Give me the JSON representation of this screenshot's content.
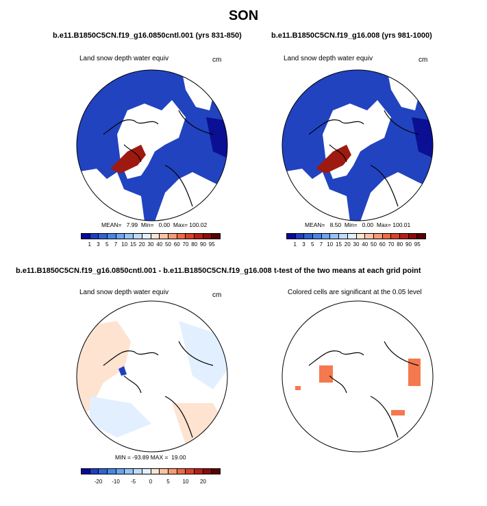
{
  "title": "SON",
  "panels": [
    {
      "title": "b.e11.B1850C5CN.f19_g16.0850cntl.001 (yrs 831-850)",
      "variable": "Land snow depth water equiv",
      "units": "cm",
      "stats": "MEAN=   7.99  Min=   0.00  Max= 100.02"
    },
    {
      "title": "b.e11.B1850C5CN.f19_g16.008 (yrs 981-1000)",
      "variable": "Land snow depth water equiv",
      "units": "cm",
      "stats": "MEAN=   8.50  Min=   0.00  Max= 100.01"
    },
    {
      "title": "b.e11.B1850C5CN.f19_g16.0850cntl.001 - b.e11.B1850C5CN.f19_g16.008",
      "variable": "Land snow depth water equiv",
      "units": "cm",
      "stats": "MIN = -93.89 MAX =  19.00"
    },
    {
      "title": "t-test of the two means at each grid point",
      "variable": "Colored cells are significant at the 0.05 level",
      "units": "",
      "stats": ""
    }
  ],
  "chart_data": [
    {
      "type": "heatmap",
      "projection": "north polar stereographic",
      "colorbar": {
        "labels": [
          "1",
          "3",
          "5",
          "7",
          "10",
          "15",
          "20",
          "30",
          "40",
          "50",
          "60",
          "70",
          "80",
          "90",
          "95"
        ],
        "colors": [
          "#08089c",
          "#1f3fc2",
          "#2f62d7",
          "#4a85e6",
          "#6aa5ef",
          "#94c3f5",
          "#bedcf8",
          "#e2efff",
          "#fde3d0",
          "#fbc3a6",
          "#f79a76",
          "#ee6a47",
          "#d9422a",
          "#b81e18",
          "#8c0c0c",
          "#5a0000"
        ]
      }
    },
    {
      "type": "heatmap",
      "projection": "north polar stereographic",
      "colorbar": {
        "labels": [
          "1",
          "3",
          "5",
          "7",
          "10",
          "15",
          "20",
          "30",
          "40",
          "50",
          "60",
          "70",
          "80",
          "90",
          "95"
        ],
        "colors": [
          "#08089c",
          "#1f3fc2",
          "#2f62d7",
          "#4a85e6",
          "#6aa5ef",
          "#94c3f5",
          "#bedcf8",
          "#e2efff",
          "#fde3d0",
          "#fbc3a6",
          "#f79a76",
          "#ee6a47",
          "#d9422a",
          "#b81e18",
          "#8c0c0c",
          "#5a0000"
        ]
      }
    },
    {
      "type": "heatmap",
      "projection": "north polar stereographic",
      "colorbar": {
        "labels": [
          "-20",
          "-10",
          "-5",
          "0",
          "5",
          "10",
          "20"
        ],
        "colors": [
          "#08089c",
          "#1f3fc2",
          "#2f62d7",
          "#4a85e6",
          "#6aa5ef",
          "#94c3f5",
          "#bedcf8",
          "#e2efff",
          "#fde3d0",
          "#fbc3a6",
          "#f79a76",
          "#ee6a47",
          "#d9422a",
          "#b81e18",
          "#8c0c0c",
          "#5a0000"
        ]
      }
    },
    {
      "type": "heatmap",
      "projection": "north polar stereographic",
      "significance_color": "#f4794f"
    }
  ]
}
